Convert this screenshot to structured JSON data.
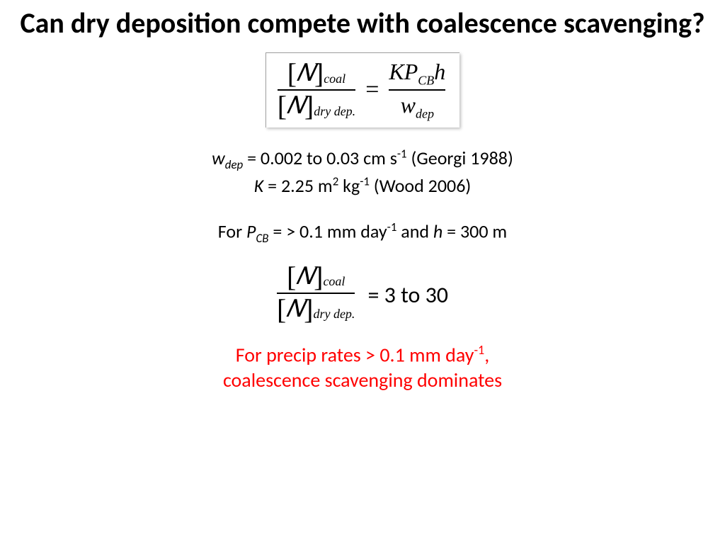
{
  "colors": {
    "background": "#ffffff",
    "text": "#000000",
    "accent_red": "#ff0000",
    "box_border": "#a0a0a0"
  },
  "fonts": {
    "body": "Calibri, Arial, sans-serif",
    "math": "'Cambria Math','Times New Roman',serif",
    "title_size": 40,
    "body_size": 26,
    "eq_size": 34,
    "conclusion_size": 28
  },
  "title": "Can dry deposition compete with coalescence scavenging?",
  "equation1": {
    "numerator_symbol": "N",
    "numerator_sub": "coal",
    "denominator_symbol": "N",
    "denominator_sub": "dry dep.",
    "rhs_numerator": "KP",
    "rhs_num_sub": "CB",
    "rhs_num_tail": "h",
    "rhs_denominator": "w",
    "rhs_den_sub": "dep"
  },
  "param_lines": {
    "line1_var": "w",
    "line1_sub": "dep",
    "line1_text": " = 0.002 to 0.03 cm s",
    "line1_exp": "-1",
    "line1_cite": " (Georgi 1988)",
    "line2_var": "K",
    "line2_text": " = 2.25 m",
    "line2_exp1": "2",
    "line2_mid": " kg",
    "line2_exp2": "-1",
    "line2_cite": " (Wood 2006)"
  },
  "condition": {
    "prefix": "For ",
    "var": "P",
    "sub": "CB",
    "mid": " = > 0.1 mm day",
    "exp": "-1",
    "tail": " and ",
    "var2": "h",
    "tail2": " = 300 m"
  },
  "result": {
    "numerator_sub": "coal",
    "denominator_sub": "dry dep.",
    "value_text": " = 3 to 30"
  },
  "conclusion": {
    "line1_a": "For precip rates > 0.1 mm day",
    "line1_exp": "-1",
    "line1_b": ",",
    "line2": "coalescence scavenging dominates"
  }
}
